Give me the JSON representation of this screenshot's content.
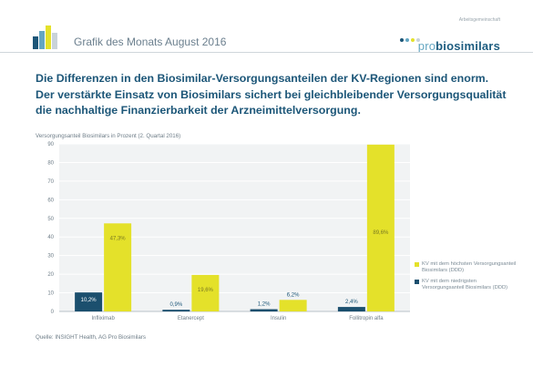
{
  "header": {
    "title": "Grafik des Monats August 2016",
    "brand_small": "Arbeitsgemeinschaft",
    "brand_pro": "pro",
    "brand_name": "biosimilars",
    "colors": {
      "dark_blue": "#1c5678",
      "yellow": "#e4e12a",
      "light_blue": "#64a6c2"
    }
  },
  "headline": [
    "Die Differenzen in den Biosimilar-Versorgungsanteilen der KV-Regionen sind enorm.",
    "Der verstärkte Einsatz von Biosimilars sichert bei gleichbleibender Versorgungsqualität",
    "die nachhaltige Finanzierbarkeit der Arzneimittelversorgung."
  ],
  "chart_data": {
    "type": "bar",
    "title": "Versorgungsanteil Biosimilars in Prozent (2. Quartal 2016)",
    "categories": [
      "Infliximab",
      "Etanercept",
      "Insulin",
      "Follitropin alfa"
    ],
    "series": [
      {
        "name": "KV mit dem niedrigsten Versorgungsanteil Biosimilars (DDD)",
        "color": "#1b4f6e",
        "values": [
          10.2,
          0.9,
          1.2,
          2.4
        ],
        "labels": [
          "10,2%",
          "0,9%",
          "1,2%",
          "2,4%"
        ]
      },
      {
        "name": "KV mit dem höchsten Versorgungsanteil Biosimilars (DDD)",
        "color": "#e4e12a",
        "values": [
          47.3,
          19.6,
          6.2,
          89.6
        ],
        "labels": [
          "47,3%",
          "19,6%",
          "6,2%",
          "89,6%"
        ]
      }
    ],
    "yticks": [
      0,
      10,
      20,
      30,
      40,
      50,
      60,
      70,
      80,
      90
    ],
    "ylim": [
      0,
      90
    ],
    "grid": true,
    "legend_position": "right"
  },
  "legend": {
    "high": "KV mit dem höchsten Versorgungsanteil Biosimilars (DDD)",
    "low": "KV mit dem niedrigsten Versorgungsanteil Biosimilars (DDD)"
  },
  "source": "Quelle: INSIGHT Health, AG Pro Biosimilars"
}
